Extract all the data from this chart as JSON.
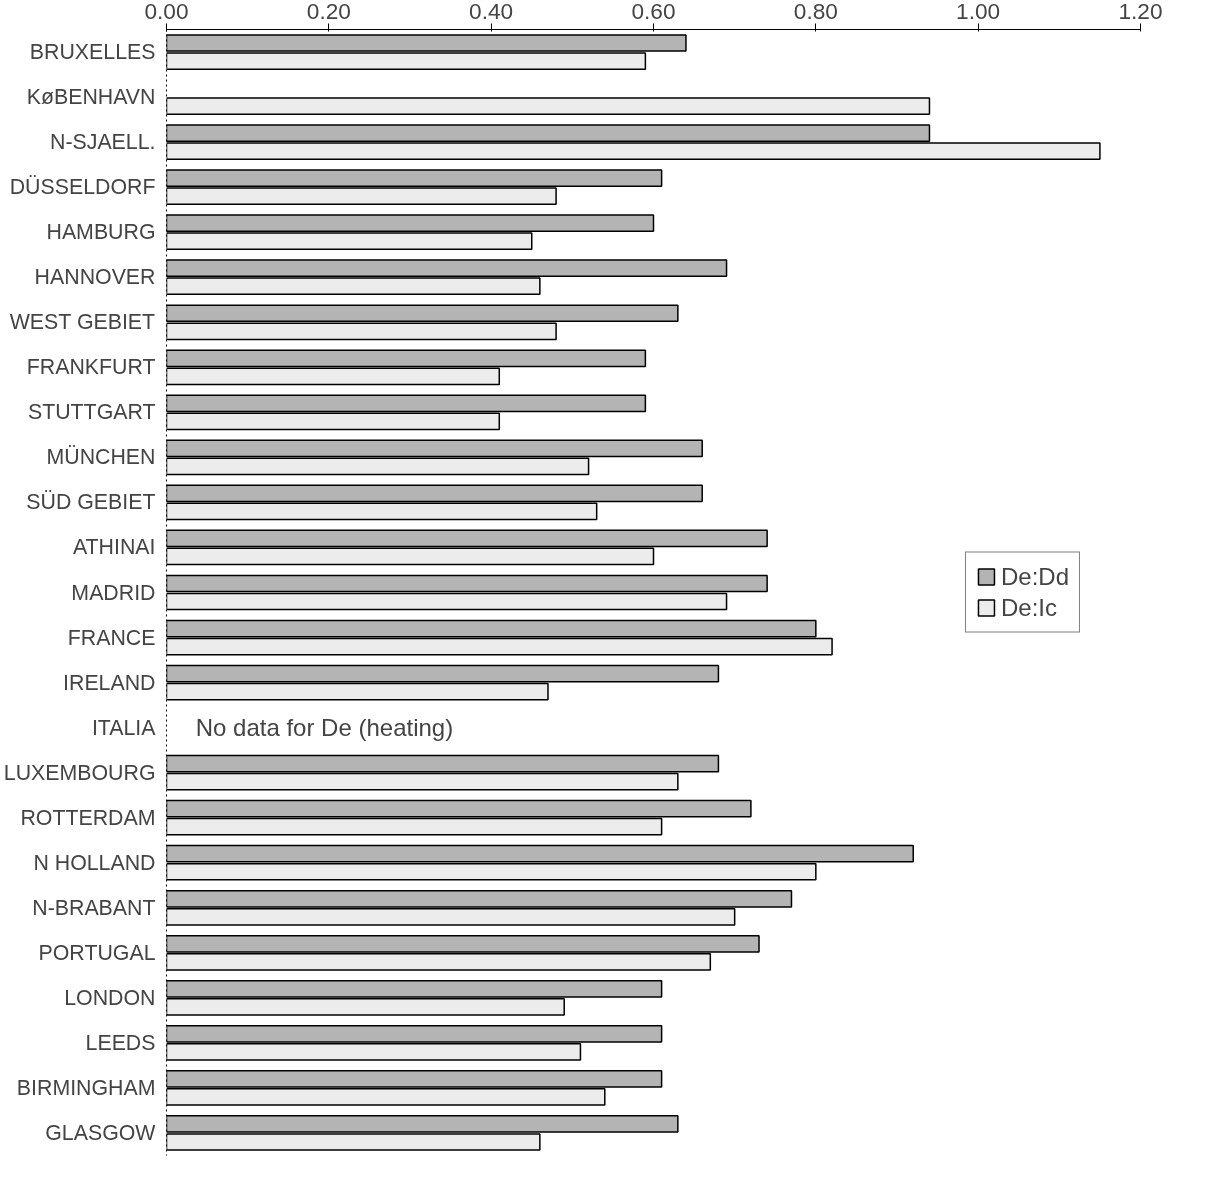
{
  "chart_data": {
    "type": "bar",
    "orientation": "horizontal",
    "categories": [
      "BRUXELLES",
      "KøBENHAVN",
      "N-SJAELL.",
      "DÜSSELDORF",
      "HAMBURG",
      "HANNOVER",
      "WEST GEBIET",
      "FRANKFURT",
      "STUTTGART",
      "MÜNCHEN",
      "SÜD GEBIET",
      "ATHINAI",
      "MADRID",
      "FRANCE",
      "IRELAND",
      "ITALIA",
      "LUXEMBOURG",
      "ROTTERDAM",
      "N HOLLAND",
      "N-BRABANT",
      "PORTUGAL",
      "LONDON",
      "LEEDS",
      "BIRMINGHAM",
      "GLASGOW"
    ],
    "series": [
      {
        "name": "De:Dd",
        "color": "#b4b4b4",
        "values": [
          0.64,
          null,
          0.94,
          0.61,
          0.6,
          0.69,
          0.63,
          0.59,
          0.59,
          0.66,
          0.66,
          0.74,
          0.74,
          0.8,
          0.68,
          null,
          0.68,
          0.72,
          0.92,
          0.77,
          0.73,
          0.61,
          0.61,
          0.61,
          0.63
        ]
      },
      {
        "name": "De:Ic",
        "color": "#ececec",
        "values": [
          0.59,
          0.94,
          1.15,
          0.48,
          0.45,
          0.46,
          0.48,
          0.41,
          0.41,
          0.52,
          0.53,
          0.6,
          0.69,
          0.82,
          0.47,
          null,
          0.63,
          0.61,
          0.8,
          0.7,
          0.67,
          0.49,
          0.51,
          0.54,
          0.46
        ]
      }
    ],
    "xlim": [
      0,
      1.2
    ],
    "xticks": [
      {
        "value": 0,
        "label": "0.00"
      },
      {
        "value": 0.2,
        "label": "0.20"
      },
      {
        "value": 0.4,
        "label": "0.40"
      },
      {
        "value": 0.6,
        "label": "0.60"
      },
      {
        "value": 0.8,
        "label": "0.80"
      },
      {
        "value": 1.0,
        "label": "1.00"
      },
      {
        "value": 1.2,
        "label": "1.20"
      }
    ],
    "annotations": [
      "No data for De (heating)"
    ],
    "legend": "right",
    "grid": false
  }
}
